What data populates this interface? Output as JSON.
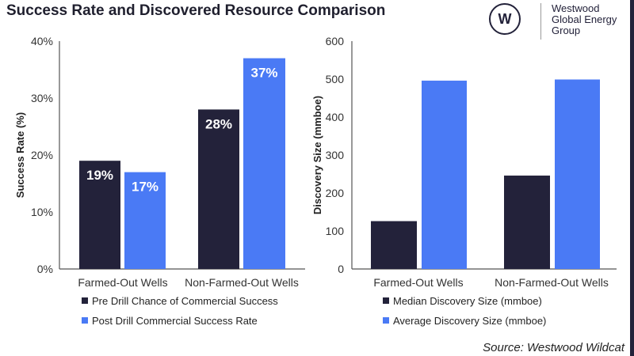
{
  "title": "Success Rate and Discovered Resource Comparison",
  "logo": {
    "lines": [
      "Westwood",
      "Global Energy",
      "Group"
    ],
    "mark": "W"
  },
  "source": "Source: Westwood Wildcat",
  "colors": {
    "dark": "#23223a",
    "blue": "#4a7af5"
  },
  "chart_data": [
    {
      "type": "bar",
      "categories": [
        "Farmed-Out Wells",
        "Non-Farmed-Out Wells"
      ],
      "series": [
        {
          "name": "Pre Drill Chance of Commercial Success",
          "values": [
            19,
            28
          ],
          "labels": [
            "19%",
            "28%"
          ]
        },
        {
          "name": "Post Drill Commercial Success Rate",
          "values": [
            17,
            37
          ],
          "labels": [
            "17%",
            "37%"
          ]
        }
      ],
      "xlabel": "",
      "ylabel": "Success Rate (%)",
      "ylim": [
        0,
        40
      ],
      "yticks": [
        "0%",
        "10%",
        "20%",
        "30%",
        "40%"
      ],
      "grid": false,
      "legend": "bottom"
    },
    {
      "type": "bar",
      "categories": [
        "Farmed-Out Wells",
        "Non-Farmed-Out Wells"
      ],
      "series": [
        {
          "name": "Median Discovery Size (mmboe)",
          "values": [
            126,
            246
          ]
        },
        {
          "name": "Average Discovery Size (mmboe)",
          "values": [
            496,
            499
          ]
        }
      ],
      "xlabel": "",
      "ylabel": "Discovery Size (mmboe)",
      "ylim": [
        0,
        600
      ],
      "yticks": [
        "0",
        "100",
        "200",
        "300",
        "400",
        "500",
        "600"
      ],
      "grid": false,
      "legend": "bottom"
    }
  ]
}
